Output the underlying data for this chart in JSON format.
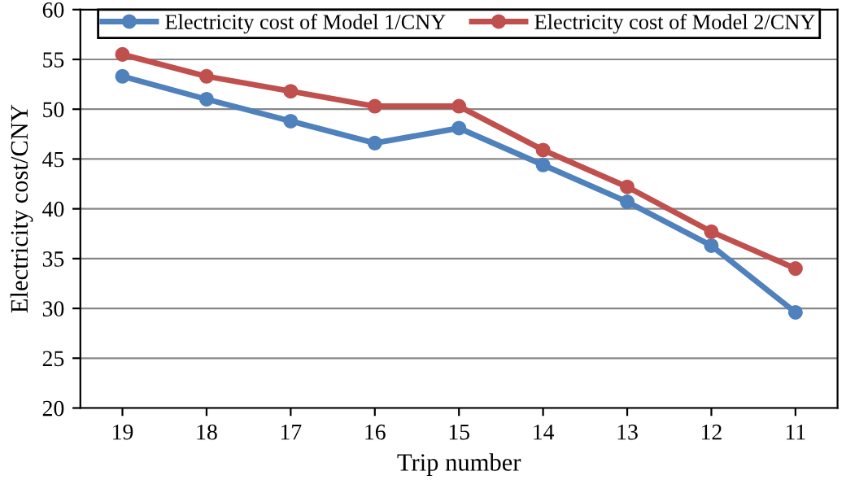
{
  "chart_data": {
    "type": "line",
    "xlabel": "Trip number",
    "ylabel": "Electricity cost/CNY",
    "categories": [
      "19",
      "18",
      "17",
      "16",
      "15",
      "14",
      "13",
      "12",
      "11"
    ],
    "series": [
      {
        "name": "Electricity cost of Model 1/CNY",
        "color": "#4f81bd",
        "values": [
          53.3,
          51.0,
          48.8,
          46.6,
          48.1,
          44.4,
          40.7,
          36.3,
          29.6
        ]
      },
      {
        "name": "Electricity cost of Model 2/CNY",
        "color": "#c0504d",
        "values": [
          55.5,
          53.3,
          51.8,
          50.3,
          50.3,
          45.9,
          42.2,
          37.7,
          34.0
        ]
      }
    ],
    "ylim": [
      20,
      60
    ],
    "yticks": [
      20,
      25,
      30,
      35,
      40,
      45,
      50,
      55,
      60
    ],
    "grid": "y",
    "legend": "top",
    "marker": "circle",
    "line_style": "solid"
  }
}
